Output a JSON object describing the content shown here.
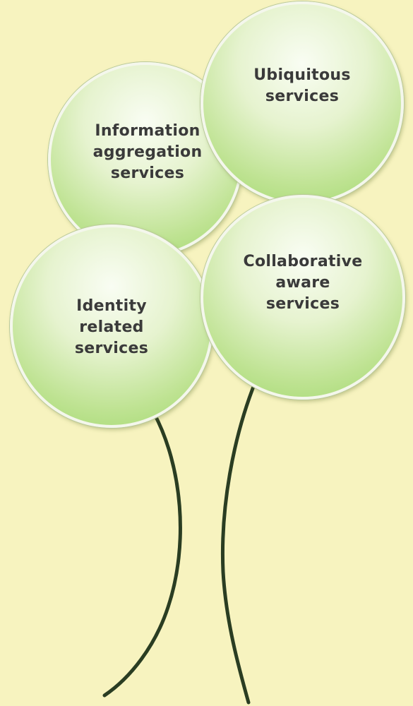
{
  "diagram": {
    "background_color": "#f7f3bf",
    "balloon_color": "#a6da70",
    "stem_color": "#2a3d22",
    "balloons": [
      {
        "id": "information-aggregation",
        "lines": [
          "Information",
          "aggregation",
          "services"
        ]
      },
      {
        "id": "ubiquitous",
        "lines": [
          "Ubiquitous",
          "services"
        ]
      },
      {
        "id": "identity-related",
        "lines": [
          "Identity",
          "related",
          "services"
        ]
      },
      {
        "id": "collaborative-aware",
        "lines": [
          "Collaborative",
          "aware",
          "services"
        ]
      }
    ]
  }
}
